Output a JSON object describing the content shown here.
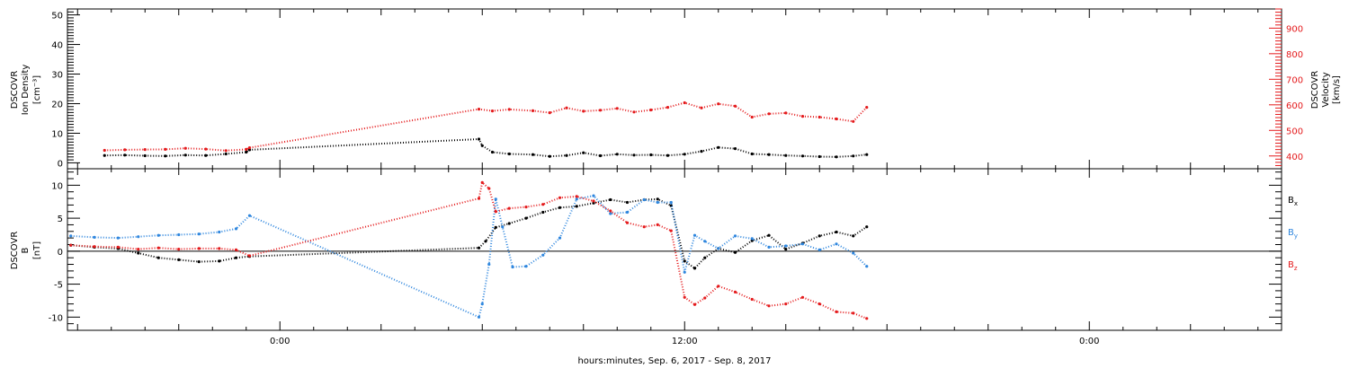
{
  "chart_data": [
    {
      "type": "scatter",
      "panel": "top",
      "ylabel_left": [
        "DSCOVR",
        "Ion Density",
        "[cm⁻³]"
      ],
      "ylabel_right": [
        "DSCOVR",
        "Velocity",
        "[km/s]"
      ],
      "ylim_left": [
        -2,
        52
      ],
      "yticks_left": [
        0,
        10,
        20,
        30,
        40,
        50
      ],
      "ylim_right": [
        350,
        975
      ],
      "yticks_right": [
        400,
        500,
        600,
        700,
        800,
        900
      ],
      "series": [
        {
          "axis": "left",
          "color": "#000000",
          "x": [
            -5.2,
            -4.6,
            -4.0,
            -3.4,
            -2.8,
            -2.2,
            -1.6,
            -1.0,
            -0.9,
            5.9,
            6.0,
            6.3,
            6.8,
            7.5,
            8.0,
            8.5,
            9.0,
            9.5,
            10.0,
            10.5,
            11.0,
            11.5,
            12.0,
            12.5,
            13.0,
            13.5,
            14.0,
            14.5,
            15.0,
            15.5,
            16.0,
            16.5,
            17.0,
            17.4
          ],
          "y": [
            2.5,
            2.6,
            2.4,
            2.3,
            2.6,
            2.5,
            3.0,
            3.6,
            4.4,
            8.0,
            5.8,
            3.6,
            3.0,
            2.8,
            2.2,
            2.5,
            3.4,
            2.4,
            2.9,
            2.6,
            2.7,
            2.5,
            2.9,
            3.9,
            5.2,
            4.8,
            3.0,
            2.8,
            2.5,
            2.3,
            2.1,
            2.0,
            2.3,
            2.8
          ]
        },
        {
          "axis": "right",
          "color": "#e41a1c",
          "x": [
            -5.2,
            -4.6,
            -4.0,
            -3.4,
            -2.8,
            -2.2,
            -1.6,
            -1.0,
            -0.9,
            5.9,
            6.3,
            6.8,
            7.5,
            8.0,
            8.5,
            9.0,
            9.5,
            10.0,
            10.5,
            11.0,
            11.5,
            12.0,
            12.5,
            13.0,
            13.5,
            14.0,
            14.5,
            15.0,
            15.5,
            16.0,
            16.5,
            17.0,
            17.4
          ],
          "y": [
            422,
            424,
            425,
            426,
            430,
            427,
            421,
            426,
            432,
            583,
            576,
            582,
            577,
            569,
            588,
            575,
            579,
            586,
            572,
            580,
            590,
            608,
            588,
            604,
            595,
            552,
            565,
            568,
            555,
            552,
            545,
            535,
            590
          ]
        }
      ]
    },
    {
      "type": "scatter",
      "panel": "bottom",
      "ylabel": [
        "DSCOVR",
        "B",
        "[nT]"
      ],
      "ylim": [
        -12,
        12.5
      ],
      "yticks": [
        -10,
        -5,
        0,
        5,
        10
      ],
      "zero_line": true,
      "xlabel": "hours:minutes, Sep.  6, 2017 - Sep.  8, 2017",
      "xlim": [
        -6.3,
        29.7
      ],
      "xticks": [
        0,
        12,
        24
      ],
      "xtick_labels": [
        "0:00",
        "12:00",
        "0:00"
      ],
      "legend": [
        "B",
        "B",
        "B"
      ],
      "legend_subscripts": [
        "x",
        "y",
        "z"
      ],
      "legend_placement": "right",
      "series": [
        {
          "name": "Bx",
          "color": "#000000",
          "x": [
            -6.2,
            -5.5,
            -4.8,
            -4.2,
            -3.6,
            -3.0,
            -2.4,
            -1.8,
            -1.3,
            -0.9,
            5.9,
            6.1,
            6.4,
            6.8,
            7.3,
            7.8,
            8.3,
            8.8,
            9.3,
            9.8,
            10.3,
            10.8,
            11.2,
            11.6,
            12.0,
            12.3,
            12.6,
            13.0,
            13.5,
            14.0,
            14.5,
            15.0,
            15.5,
            16.0,
            16.5,
            17.0,
            17.4
          ],
          "y": [
            0.9,
            0.6,
            0.4,
            -0.3,
            -1.0,
            -1.3,
            -1.6,
            -1.5,
            -1.0,
            -0.8,
            0.5,
            1.5,
            3.6,
            4.2,
            5.0,
            5.9,
            6.6,
            6.8,
            7.3,
            7.8,
            7.4,
            7.8,
            7.9,
            6.9,
            -1.5,
            -2.6,
            -1.0,
            0.4,
            -0.2,
            1.6,
            2.4,
            0.3,
            1.2,
            2.3,
            2.9,
            2.3,
            3.7
          ]
        },
        {
          "name": "By",
          "color": "#2e86de",
          "x": [
            -6.2,
            -5.5,
            -4.8,
            -4.2,
            -3.6,
            -3.0,
            -2.4,
            -1.8,
            -1.3,
            -0.9,
            5.9,
            6.0,
            6.2,
            6.4,
            6.6,
            6.9,
            7.3,
            7.8,
            8.3,
            8.8,
            9.3,
            9.8,
            10.3,
            10.8,
            11.2,
            11.6,
            12.0,
            12.3,
            12.6,
            13.0,
            13.5,
            14.0,
            14.5,
            15.0,
            15.5,
            16.0,
            16.5,
            17.0,
            17.4
          ],
          "y": [
            2.3,
            2.1,
            2.0,
            2.2,
            2.4,
            2.5,
            2.6,
            2.9,
            3.4,
            5.4,
            -10.0,
            -8.0,
            -2.0,
            7.9,
            3.7,
            -2.4,
            -2.3,
            -0.6,
            2.0,
            7.9,
            8.4,
            5.7,
            5.9,
            7.8,
            7.4,
            7.4,
            -3.2,
            2.4,
            1.5,
            0.4,
            2.3,
            1.9,
            0.6,
            0.8,
            1.1,
            0.2,
            1.1,
            -0.3,
            -2.3
          ]
        },
        {
          "name": "Bz",
          "color": "#e41a1c",
          "x": [
            -6.2,
            -5.5,
            -4.8,
            -4.2,
            -3.6,
            -3.0,
            -2.4,
            -1.8,
            -1.3,
            -0.9,
            5.9,
            6.0,
            6.2,
            6.4,
            6.8,
            7.3,
            7.8,
            8.3,
            8.8,
            9.3,
            9.8,
            10.3,
            10.8,
            11.2,
            11.6,
            12.0,
            12.3,
            12.6,
            13.0,
            13.5,
            14.0,
            14.5,
            15.0,
            15.5,
            16.0,
            16.5,
            17.0,
            17.4
          ],
          "y": [
            0.9,
            0.7,
            0.6,
            0.3,
            0.5,
            0.3,
            0.4,
            0.4,
            0.2,
            -0.7,
            8.0,
            10.4,
            9.5,
            6.0,
            6.5,
            6.7,
            7.1,
            8.1,
            8.3,
            7.6,
            6.1,
            4.3,
            3.7,
            4.0,
            3.1,
            -7.0,
            -8.1,
            -7.1,
            -5.3,
            -6.2,
            -7.3,
            -8.3,
            -8.0,
            -7.0,
            -8.0,
            -9.2,
            -9.4,
            -10.2
          ]
        }
      ]
    }
  ]
}
